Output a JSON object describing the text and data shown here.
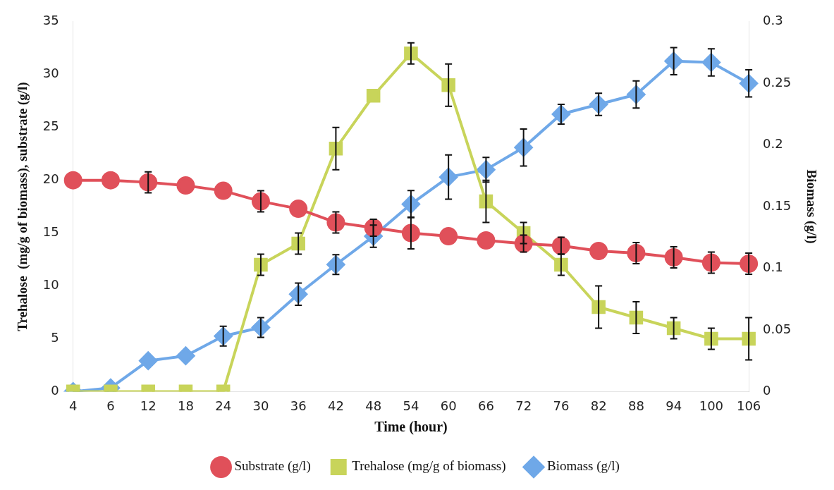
{
  "chart_data": {
    "type": "line",
    "xlabel": "Time (hour)",
    "ylabel": "Trehalose  (mg/g of biomass), substrate (g/l)",
    "y2label": "Biomass (g/l)",
    "categories": [
      "4",
      "6",
      "12",
      "18",
      "24",
      "30",
      "36",
      "42",
      "48",
      "54",
      "60",
      "66",
      "72",
      "76",
      "82",
      "88",
      "94",
      "100",
      "106"
    ],
    "ylim": [
      0,
      35
    ],
    "yticks": [
      0,
      5,
      10,
      15,
      20,
      25,
      30,
      35
    ],
    "y2lim": [
      0,
      0.3
    ],
    "y2ticks": [
      0,
      0.05,
      0.1,
      0.15,
      0.2,
      0.25,
      0.3
    ],
    "grid": false,
    "legend": "bottom",
    "series": [
      {
        "name": "Substrate (g/l)",
        "color": "#e0505a",
        "marker": "circle",
        "values": [
          20,
          20,
          19.8,
          19.5,
          19,
          18,
          17.3,
          16,
          15.5,
          15,
          14.7,
          14.3,
          14,
          13.8,
          13.3,
          13.1,
          12.7,
          12.2,
          12.1
        ],
        "errors": [
          null,
          null,
          1,
          null,
          null,
          1,
          null,
          1,
          0.8,
          1.5,
          null,
          null,
          0.8,
          0.8,
          null,
          1,
          1,
          1,
          1
        ]
      },
      {
        "name": "Trehalose (mg/g of biomass)",
        "color": "#c8d45a",
        "marker": "square",
        "values": [
          0,
          0,
          0,
          0,
          0,
          12,
          14,
          23,
          28,
          32,
          29,
          18,
          15,
          12,
          8,
          7,
          6,
          5,
          5
        ],
        "errors": [
          null,
          null,
          null,
          null,
          null,
          1,
          1,
          2,
          null,
          1,
          2,
          2,
          1,
          1,
          2,
          1.5,
          1,
          1,
          2
        ]
      },
      {
        "name": "Biomass (g/l)",
        "color": "#6fa8e8",
        "marker": "diamond",
        "axis": "y2",
        "values": [
          0,
          0.003,
          0.025,
          0.029,
          0.045,
          0.052,
          0.079,
          0.103,
          0.126,
          0.152,
          0.174,
          0.18,
          0.198,
          0.225,
          0.233,
          0.241,
          0.268,
          0.267,
          0.25
        ],
        "errors": [
          null,
          null,
          null,
          null,
          0.008,
          0.008,
          0.009,
          0.008,
          0.009,
          0.011,
          0.018,
          0.01,
          0.015,
          0.008,
          0.009,
          0.011,
          0.011,
          0.011,
          0.011
        ]
      }
    ]
  }
}
